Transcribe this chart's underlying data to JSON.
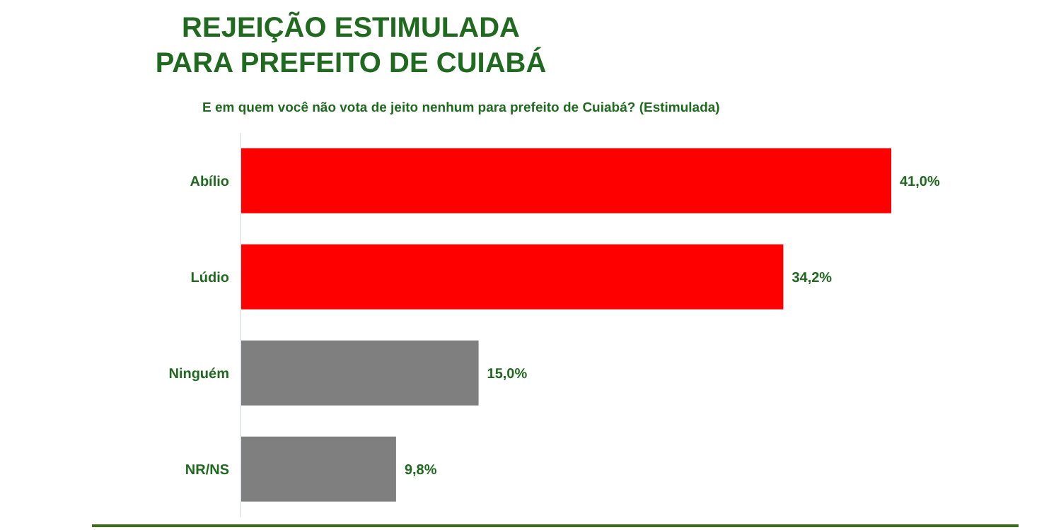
{
  "chart_data": {
    "type": "bar",
    "orientation": "horizontal",
    "title": "REJEIÇÃO ESTIMULADA\nPARA PREFEITO DE CUIABÁ",
    "subtitle": "E em quem você não vota de jeito nenhum para prefeito de Cuiabá? (Estimulada)",
    "categories": [
      "Abílio",
      "Lúdio",
      "Ninguém",
      "NR/NS"
    ],
    "values": [
      41.0,
      34.2,
      15.0,
      9.8
    ],
    "colors": [
      "#ff0000",
      "#ff0000",
      "#7f7f7f",
      "#7f7f7f"
    ],
    "value_labels": [
      "41,0%",
      "34,2%",
      "15,0%",
      "9,8%"
    ],
    "grid": false,
    "legend": false
  }
}
